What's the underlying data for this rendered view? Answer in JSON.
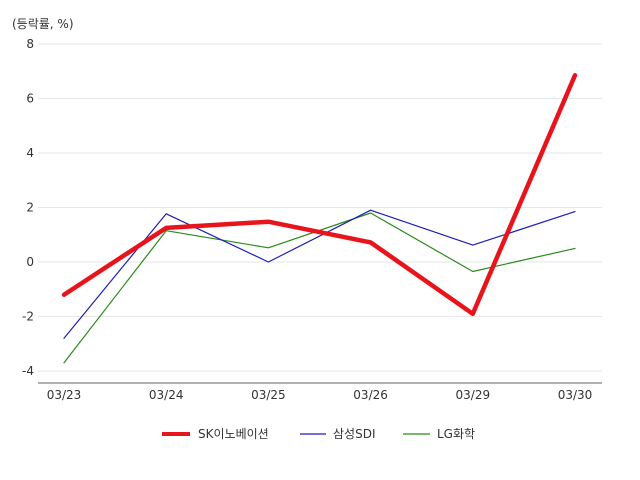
{
  "chart_data": {
    "type": "line",
    "unit_label": "(등락률, %)",
    "categories": [
      "03/23",
      "03/24",
      "03/25",
      "03/26",
      "03/29",
      "03/30"
    ],
    "y_ticks": [
      "8",
      "6",
      "4",
      "2",
      "0",
      "-2",
      "-4"
    ],
    "ylim": [
      -4,
      8
    ],
    "grid": true,
    "legend_position": "bottom",
    "series": [
      {
        "name": "SK이노베이션",
        "color": "#e8141b",
        "values": [
          -1.2,
          1.25,
          1.48,
          0.72,
          -1.9,
          6.85
        ]
      },
      {
        "name": "삼성SDI",
        "color": "#1f1fb8",
        "values": [
          -2.8,
          1.77,
          0.0,
          1.9,
          0.62,
          1.85
        ]
      },
      {
        "name": "LG화학",
        "color": "#2a8a1c",
        "values": [
          -3.7,
          1.15,
          0.52,
          1.8,
          -0.35,
          0.5
        ]
      }
    ]
  }
}
